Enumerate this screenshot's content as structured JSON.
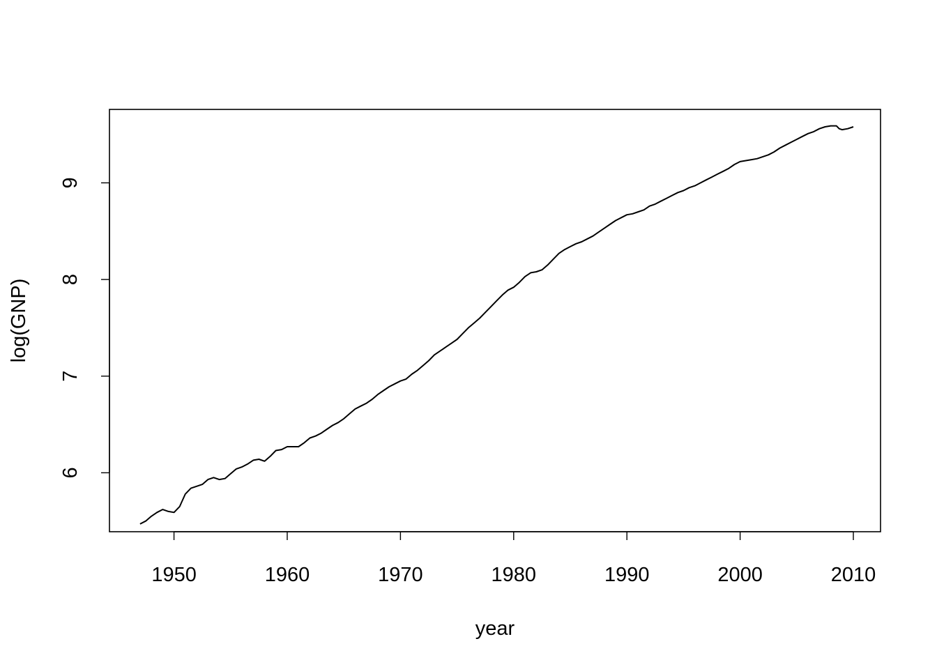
{
  "chart_data": {
    "type": "line",
    "title": "",
    "xlabel": "year",
    "ylabel": "log(GNP)",
    "xlim": [
      1944.3,
      2012.4
    ],
    "ylim": [
      5.39,
      9.76
    ],
    "x_ticks": [
      1950,
      1960,
      1970,
      1980,
      1990,
      2000,
      2010
    ],
    "y_ticks": [
      6,
      7,
      8,
      9
    ],
    "grid": false,
    "legend": "none",
    "line_color": "#000000",
    "series": [
      {
        "x": [
          1947.0,
          1947.5,
          1948.0,
          1948.5,
          1949.0,
          1949.5,
          1950.0,
          1950.5,
          1951.0,
          1951.5,
          1952.0,
          1952.5,
          1953.0,
          1953.5,
          1954.0,
          1954.5,
          1955.0,
          1955.5,
          1956.0,
          1956.5,
          1957.0,
          1957.5,
          1958.0,
          1958.5,
          1959.0,
          1959.5,
          1960.0,
          1960.5,
          1961.0,
          1961.5,
          1962.0,
          1962.5,
          1963.0,
          1963.5,
          1964.0,
          1964.5,
          1965.0,
          1965.5,
          1966.0,
          1966.5,
          1967.0,
          1967.5,
          1968.0,
          1968.5,
          1969.0,
          1969.5,
          1970.0,
          1970.5,
          1971.0,
          1971.5,
          1972.0,
          1972.5,
          1973.0,
          1973.5,
          1974.0,
          1974.5,
          1975.0,
          1975.5,
          1976.0,
          1976.5,
          1977.0,
          1977.5,
          1978.0,
          1978.5,
          1979.0,
          1979.5,
          1980.0,
          1980.5,
          1981.0,
          1981.5,
          1982.0,
          1982.5,
          1983.0,
          1983.5,
          1984.0,
          1984.5,
          1985.0,
          1985.5,
          1986.0,
          1986.5,
          1987.0,
          1987.5,
          1988.0,
          1988.5,
          1989.0,
          1989.5,
          1990.0,
          1990.5,
          1991.0,
          1991.5,
          1992.0,
          1992.5,
          1993.0,
          1993.5,
          1994.0,
          1994.5,
          1995.0,
          1995.5,
          1996.0,
          1996.5,
          1997.0,
          1997.5,
          1998.0,
          1998.5,
          1999.0,
          1999.5,
          2000.0,
          2000.5,
          2001.0,
          2001.5,
          2002.0,
          2002.5,
          2003.0,
          2003.5,
          2004.0,
          2004.5,
          2005.0,
          2005.5,
          2006.0,
          2006.5,
          2007.0,
          2007.5,
          2008.0,
          2008.5,
          2008.75,
          2009.0,
          2009.5,
          2010.0
        ],
        "values": [
          5.47,
          5.5,
          5.55,
          5.59,
          5.62,
          5.6,
          5.59,
          5.65,
          5.78,
          5.84,
          5.86,
          5.88,
          5.93,
          5.95,
          5.93,
          5.94,
          5.99,
          6.04,
          6.06,
          6.09,
          6.13,
          6.14,
          6.12,
          6.17,
          6.23,
          6.24,
          6.27,
          6.27,
          6.27,
          6.31,
          6.36,
          6.38,
          6.41,
          6.45,
          6.49,
          6.52,
          6.56,
          6.61,
          6.66,
          6.69,
          6.72,
          6.76,
          6.81,
          6.85,
          6.89,
          6.92,
          6.95,
          6.97,
          7.02,
          7.06,
          7.11,
          7.16,
          7.22,
          7.26,
          7.3,
          7.34,
          7.38,
          7.44,
          7.5,
          7.55,
          7.6,
          7.66,
          7.72,
          7.78,
          7.84,
          7.89,
          7.92,
          7.97,
          8.03,
          8.07,
          8.08,
          8.1,
          8.15,
          8.21,
          8.27,
          8.31,
          8.34,
          8.37,
          8.39,
          8.42,
          8.45,
          8.49,
          8.53,
          8.57,
          8.61,
          8.64,
          8.67,
          8.68,
          8.7,
          8.72,
          8.76,
          8.78,
          8.81,
          8.84,
          8.87,
          8.9,
          8.92,
          8.95,
          8.97,
          9.0,
          9.03,
          9.06,
          9.09,
          9.12,
          9.15,
          9.19,
          9.22,
          9.23,
          9.24,
          9.25,
          9.27,
          9.29,
          9.32,
          9.36,
          9.39,
          9.42,
          9.45,
          9.48,
          9.51,
          9.53,
          9.56,
          9.58,
          9.59,
          9.59,
          9.56,
          9.55,
          9.56,
          9.58
        ]
      }
    ]
  }
}
